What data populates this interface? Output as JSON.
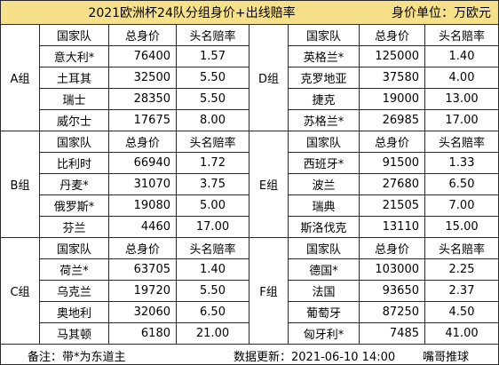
{
  "title": "2021欧洲杯24队分组身价+出线赔率",
  "unit": "身价单位：万欧元",
  "headers": {
    "team": "国家队",
    "value": "总身价",
    "odds": "头名赔率"
  },
  "groups": [
    {
      "name": "A组",
      "teams": [
        {
          "team": "意大利*",
          "value": "76400",
          "odds": "1.57"
        },
        {
          "team": "土耳其",
          "value": "32500",
          "odds": "5.50"
        },
        {
          "team": "瑞士",
          "value": "28350",
          "odds": "5.50"
        },
        {
          "team": "威尔士",
          "value": "17675",
          "odds": "8.00"
        }
      ]
    },
    {
      "name": "D组",
      "teams": [
        {
          "team": "英格兰*",
          "value": "125000",
          "odds": "1.40"
        },
        {
          "team": "克罗地亚",
          "value": "37580",
          "odds": "4.00"
        },
        {
          "team": "捷克",
          "value": "19000",
          "odds": "13.00"
        },
        {
          "team": "苏格兰*",
          "value": "26985",
          "odds": "17.00"
        }
      ]
    },
    {
      "name": "B组",
      "teams": [
        {
          "team": "比利时",
          "value": "66940",
          "odds": "1.72"
        },
        {
          "team": "丹麦*",
          "value": "31070",
          "odds": "3.75"
        },
        {
          "team": "俄罗斯*",
          "value": "19080",
          "odds": "5.00"
        },
        {
          "team": "芬兰",
          "value": "4460",
          "odds": "17.00"
        }
      ]
    },
    {
      "name": "E组",
      "teams": [
        {
          "team": "西班牙*",
          "value": "91500",
          "odds": "1.33"
        },
        {
          "team": "波兰",
          "value": "27680",
          "odds": "6.50"
        },
        {
          "team": "瑞典",
          "value": "21505",
          "odds": "7.00"
        },
        {
          "team": "斯洛伐克",
          "value": "13110",
          "odds": "15.00"
        }
      ]
    },
    {
      "name": "C组",
      "teams": [
        {
          "team": "荷兰*",
          "value": "63705",
          "odds": "1.40"
        },
        {
          "team": "乌克兰",
          "value": "19720",
          "odds": "5.50"
        },
        {
          "team": "奥地利",
          "value": "32060",
          "odds": "6.50"
        },
        {
          "team": "马其顿",
          "value": "6180",
          "odds": "21.00"
        }
      ]
    },
    {
      "name": "F组",
      "teams": [
        {
          "team": "德国*",
          "value": "103000",
          "odds": "2.25"
        },
        {
          "team": "法国",
          "value": "93650",
          "odds": "2.37"
        },
        {
          "team": "葡萄牙",
          "value": "87250",
          "odds": "4.50"
        },
        {
          "team": "匈牙利*",
          "value": "7485",
          "odds": "41.00"
        }
      ]
    }
  ],
  "footer": {
    "note": "备注：带*为东道主",
    "update": "数据更新：2021-06-10 14:00",
    "author": "嘴哥推球"
  },
  "colors": {
    "title_bg": "#f7e08a",
    "header_bg": "#fff7c2",
    "grid": "#2a2a2a"
  }
}
